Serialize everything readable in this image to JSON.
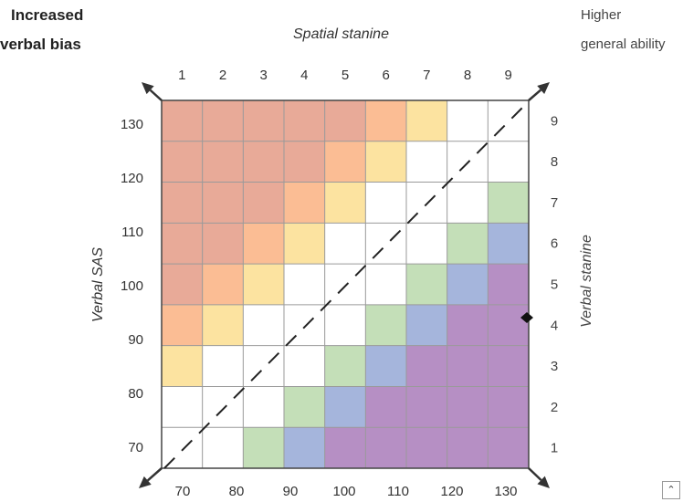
{
  "corners": {
    "top_left_line1": "Increased",
    "top_left_line2": "verbal bias",
    "top_right_line1": "Higher",
    "top_right_line2": "general ability"
  },
  "axes": {
    "top_title": "Spatial stanine",
    "left_title": "Verbal SAS",
    "right_title": "Verbal stanine",
    "top_ticks": [
      "1",
      "2",
      "3",
      "4",
      "5",
      "6",
      "7",
      "8",
      "9"
    ],
    "right_ticks": [
      "9",
      "8",
      "7",
      "6",
      "5",
      "4",
      "3",
      "2",
      "1"
    ],
    "left_ticks": [
      "130",
      "120",
      "110",
      "100",
      "90",
      "80",
      "70"
    ],
    "bottom_ticks": [
      "70",
      "80",
      "90",
      "100",
      "110",
      "120",
      "130"
    ]
  },
  "colors": {
    "R": "#e8aa98",
    "O": "#fbbd94",
    "Y": "#fce3a0",
    "W": "#ffffff",
    "G": "#c4dfb8",
    "B": "#a5b5dc",
    "P": "#b68fc4"
  },
  "grid": [
    [
      "R",
      "R",
      "R",
      "R",
      "R",
      "O",
      "Y",
      "W",
      "W"
    ],
    [
      "R",
      "R",
      "R",
      "R",
      "O",
      "Y",
      "W",
      "W",
      "W"
    ],
    [
      "R",
      "R",
      "R",
      "O",
      "Y",
      "W",
      "W",
      "W",
      "G"
    ],
    [
      "R",
      "R",
      "O",
      "Y",
      "W",
      "W",
      "W",
      "G",
      "B"
    ],
    [
      "R",
      "O",
      "Y",
      "W",
      "W",
      "W",
      "G",
      "B",
      "P"
    ],
    [
      "O",
      "Y",
      "W",
      "W",
      "W",
      "G",
      "B",
      "P",
      "P"
    ],
    [
      "Y",
      "W",
      "W",
      "W",
      "G",
      "B",
      "P",
      "P",
      "P"
    ],
    [
      "W",
      "W",
      "W",
      "G",
      "B",
      "P",
      "P",
      "P",
      "P"
    ],
    [
      "W",
      "W",
      "G",
      "B",
      "P",
      "P",
      "P",
      "P",
      "P"
    ]
  ],
  "ui": {
    "expand_icon": "expand-icon"
  }
}
